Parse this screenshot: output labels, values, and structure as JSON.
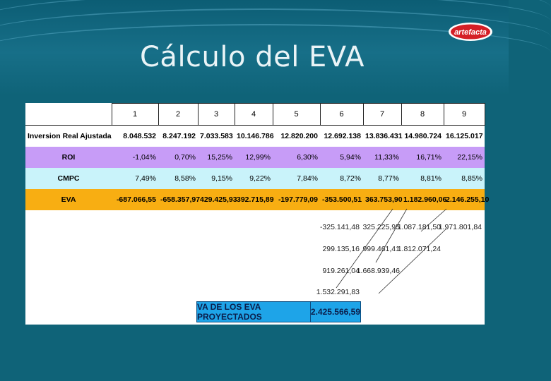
{
  "slide": {
    "title": "Cálculo del EVA"
  },
  "logo": {
    "text": "artefacta"
  },
  "table": {
    "periods": [
      "1",
      "2",
      "3",
      "4",
      "5",
      "6",
      "7",
      "8",
      "9"
    ],
    "rows": [
      {
        "label": "Inversion Real Ajustada",
        "values": [
          "8.048.532",
          "8.247.192",
          "7.033.583",
          "10.146.786",
          "12.820.200",
          "12.692.138",
          "13.836.431",
          "14.980.724",
          "16.125.017"
        ]
      },
      {
        "label": "ROI",
        "values": [
          "-1,04%",
          "0,70%",
          "15,25%",
          "12,99%",
          "6,30%",
          "5,94%",
          "11,33%",
          "16,71%",
          "22,15%"
        ]
      },
      {
        "label": "CMPC",
        "values": [
          "7,49%",
          "8,58%",
          "9,15%",
          "9,22%",
          "7,84%",
          "8,72%",
          "8,77%",
          "8,81%",
          "8,85%"
        ]
      },
      {
        "label": "EVA",
        "values": [
          "-687.066,55",
          "-658.357,97",
          "429.425,93",
          "392.715,89",
          "-197.779,09",
          "-353.500,51",
          "363.753,90",
          "1.182.960,06",
          "2.146.255,10"
        ]
      }
    ]
  },
  "triangle": {
    "row1": [
      "-325.141,48",
      "325.225,95",
      "1.087.181,50",
      "1.971.801,84"
    ],
    "row2": [
      "299.135,16",
      "999.461,41",
      "1.812.071,24"
    ],
    "row3": [
      "919.261,04",
      "1.668.939,46"
    ],
    "row4": [
      "1.532.291,83"
    ]
  },
  "summary": {
    "label": "VA DE LOS EVA PROYECTADOS",
    "value": "2.425.566,59"
  }
}
